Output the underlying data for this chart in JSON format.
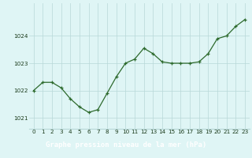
{
  "hours": [
    0,
    1,
    2,
    3,
    4,
    5,
    6,
    7,
    8,
    9,
    10,
    11,
    12,
    13,
    14,
    15,
    16,
    17,
    18,
    19,
    20,
    21,
    22,
    23
  ],
  "pressure": [
    1022.0,
    1022.3,
    1022.3,
    1022.1,
    1021.7,
    1021.4,
    1021.2,
    1021.3,
    1021.9,
    1022.5,
    1023.0,
    1023.15,
    1023.55,
    1023.35,
    1023.05,
    1023.0,
    1023.0,
    1023.0,
    1023.05,
    1023.35,
    1023.9,
    1024.0,
    1024.35,
    1024.6
  ],
  "line_color": "#2d6a2d",
  "marker": "+",
  "markersize": 3.5,
  "linewidth": 0.9,
  "bg_color": "#dff5f5",
  "grid_color": "#b8d8d8",
  "xlabel": "Graphe pression niveau de la mer (hPa)",
  "xlabel_fontsize": 6.5,
  "tick_fontsize": 5.2,
  "tick_color": "#1a3a1a",
  "yticks": [
    1021,
    1022,
    1023,
    1024
  ],
  "ylim": [
    1020.6,
    1025.2
  ],
  "xlim": [
    -0.5,
    23.5
  ],
  "bottom_bg": "#4a7a4a",
  "bottom_text_color": "#ffffff"
}
